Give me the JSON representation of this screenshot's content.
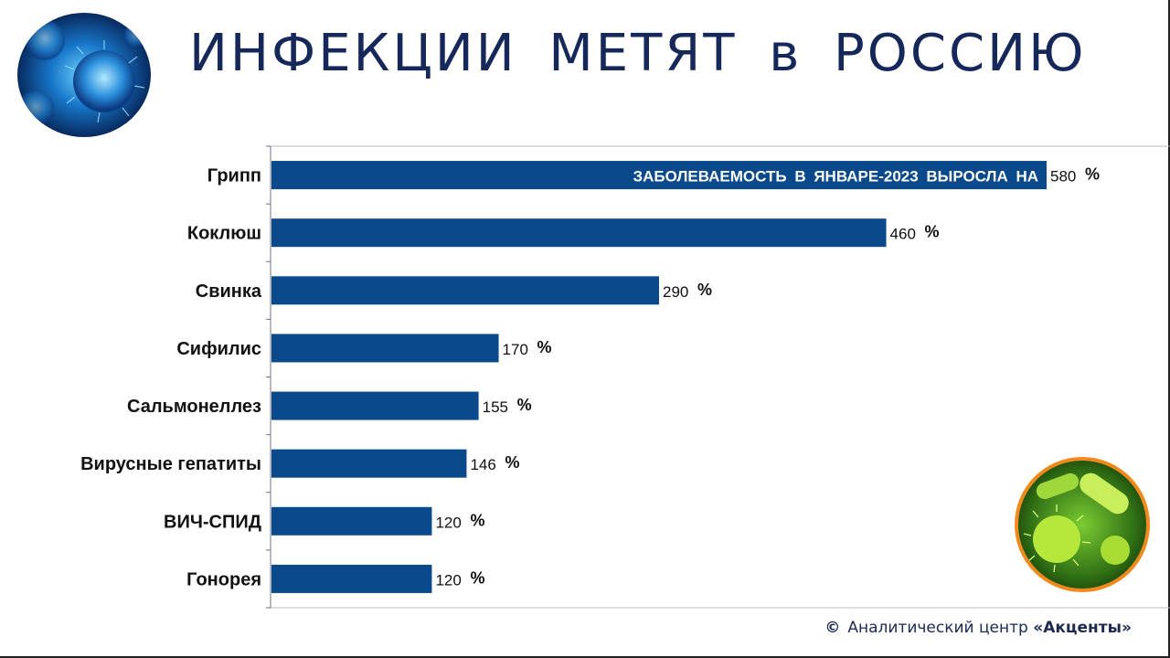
{
  "page": {
    "title": "ИНФЕКЦИИ МЕТЯТ в РОССИЮ",
    "footer_symbol": "©",
    "footer_text": "Аналитический центр",
    "footer_brand": "«Акценты»",
    "colors": {
      "bar": "#0a4a8c",
      "title": "#16285a",
      "accent_ring": "#f08a1c"
    }
  },
  "chart_data": {
    "type": "bar",
    "orientation": "horizontal",
    "annotation": "ЗАБОЛЕВАЕМОСТЬ В ЯНВАРЕ-2023 ВЫРОСЛА НА",
    "unit": "%",
    "categories": [
      "Грипп",
      "Коклюш",
      "Свинка",
      "Сифилис",
      "Сальмонеллез",
      "Вирусные гепатиты",
      "ВИЧ-СПИД",
      "Гонорея"
    ],
    "values": [
      580,
      460,
      290,
      170,
      155,
      146,
      120,
      120
    ],
    "data_labels": [
      "580",
      "460",
      "290",
      "170",
      "155",
      "146",
      "120",
      "120"
    ],
    "grid": false,
    "legend": "none"
  }
}
